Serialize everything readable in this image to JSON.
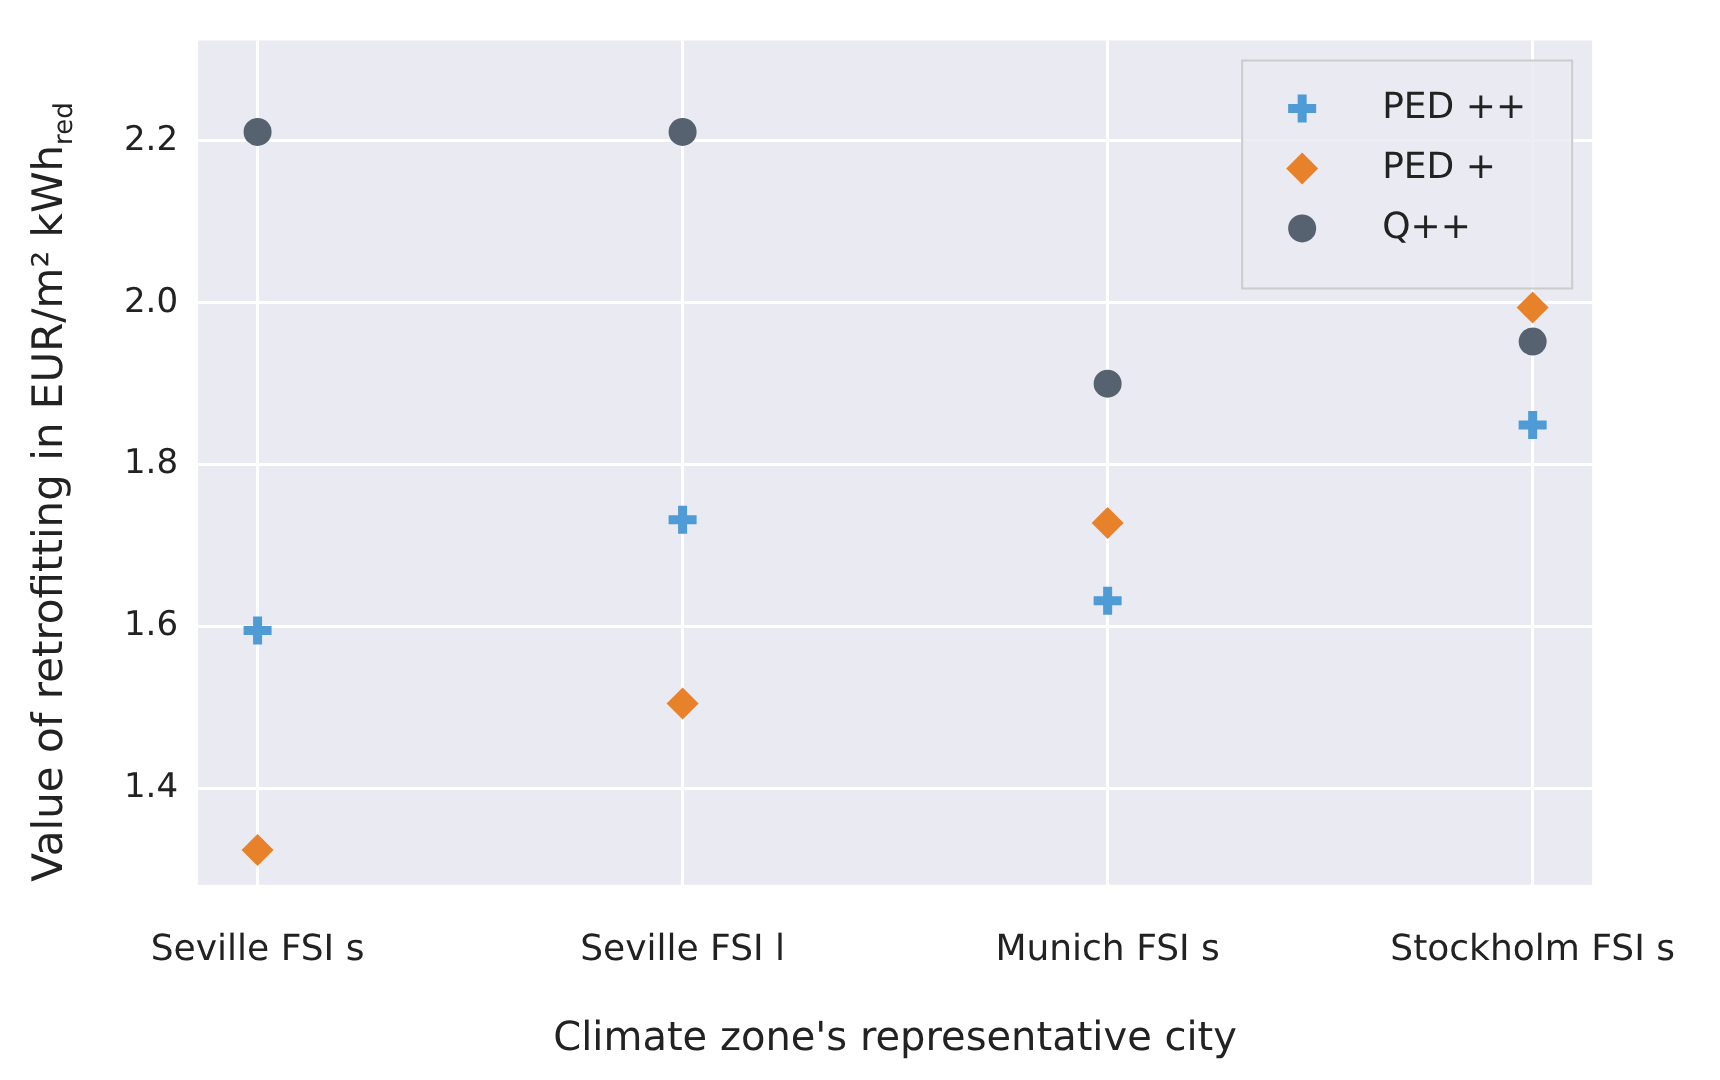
{
  "chart_data": {
    "type": "scatter",
    "xlabel": "Climate zone's representative city",
    "ylabel": "Value of retrofitting in EUR/m² kWh$_{red}$",
    "categories": [
      "Seville FSI s",
      "Seville FSI l",
      "Munich FSI s",
      "Stockholm FSI s"
    ],
    "series": [
      {
        "name": "PED ++",
        "color": "#4e9bd6",
        "marker": "cross",
        "values": [
          1.595,
          1.732,
          1.632,
          1.849
        ]
      },
      {
        "name": "PED +",
        "color": "#e8822a",
        "marker": "diamond",
        "values": [
          1.324,
          1.505,
          1.728,
          1.994
        ]
      },
      {
        "name": "Q++",
        "color": "#56626f",
        "marker": "circle",
        "values": [
          2.211,
          2.211,
          1.9,
          1.952
        ]
      }
    ],
    "ylim": [
      1.281,
      2.324
    ],
    "yticks": [
      1.4,
      1.6,
      1.8,
      {
        "value": 2,
        "label": "2.0"
      },
      2.2
    ],
    "grid": true,
    "legend": "top right"
  }
}
